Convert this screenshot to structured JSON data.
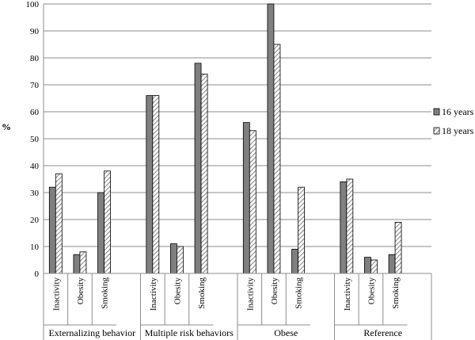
{
  "chart_data": {
    "type": "bar",
    "ylabel": "%",
    "ylim": [
      0,
      100
    ],
    "yticks": [
      0,
      10,
      20,
      30,
      40,
      50,
      60,
      70,
      80,
      90,
      100
    ],
    "grid": true,
    "legend_position": "right",
    "groups": [
      {
        "name": "Externalizing behavior",
        "categories": [
          "Inactivity",
          "Obesity",
          "Smoking"
        ]
      },
      {
        "name": "Multiple risk behaviors",
        "categories": [
          "Inactivity",
          "Obesity",
          "Smoking"
        ]
      },
      {
        "name": "Obese",
        "categories": [
          "Inactivity",
          "Obesity",
          "Smoking"
        ]
      },
      {
        "name": "Reference",
        "categories": [
          "Inactivity",
          "Obesity",
          "Smoking"
        ]
      }
    ],
    "series": [
      {
        "name": "16 years",
        "color": "#7f7f7f",
        "pattern": "solid",
        "values": [
          [
            32,
            7,
            30
          ],
          [
            66,
            11,
            78
          ],
          [
            56,
            100,
            9
          ],
          [
            34,
            6,
            7
          ]
        ]
      },
      {
        "name": "18 years",
        "color": "#7f7f7f",
        "pattern": "diagonal-hatch",
        "values": [
          [
            37,
            8,
            38
          ],
          [
            66,
            10,
            74
          ],
          [
            53,
            85,
            32
          ],
          [
            35,
            5,
            19
          ]
        ]
      }
    ]
  }
}
